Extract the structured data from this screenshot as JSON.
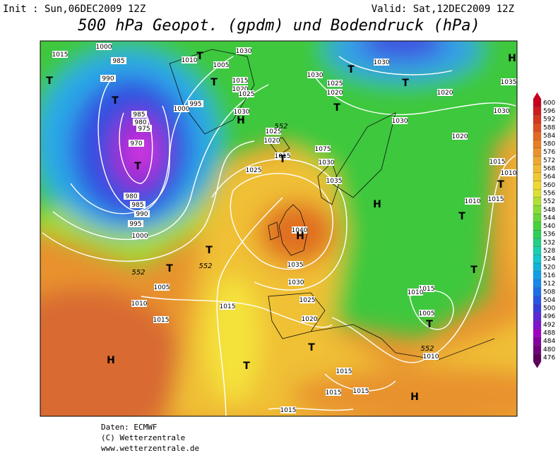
{
  "header": {
    "init": "Init : Sun,06DEC2009 12Z",
    "valid": "Valid: Sat,12DEC2009 12Z",
    "title": "500 hPa Geopot. (gpdm) und Bodendruck (hPa)"
  },
  "colorbar": {
    "ticks": [
      600,
      596,
      592,
      588,
      584,
      580,
      576,
      572,
      568,
      564,
      560,
      556,
      552,
      548,
      544,
      540,
      536,
      532,
      528,
      524,
      520,
      516,
      512,
      508,
      504,
      500,
      496,
      492,
      488,
      484,
      480,
      476
    ]
  },
  "map_labels": {
    "pressure": [
      "1015",
      "1000",
      "985",
      "990",
      "1010",
      "1005",
      "1030",
      "1015",
      "1020",
      "1025",
      "995",
      "1000",
      "985",
      "980",
      "975",
      "970",
      "1030",
      "1025",
      "1020",
      "1015",
      "1025",
      "1075",
      "1030",
      "1035",
      "980",
      "985",
      "990",
      "995",
      "1000",
      "1005",
      "1010",
      "1015",
      "1040",
      "1035",
      "1030",
      "1025",
      "1020",
      "1015",
      "1030",
      "1025",
      "1020",
      "1030",
      "1020",
      "1030",
      "1030",
      "1020",
      "1035",
      "1015",
      "1010",
      "1010",
      "1015",
      "1015",
      "1010",
      "1005",
      "1010",
      "1015",
      "1015",
      "1015",
      "1015"
    ],
    "geopotential": [
      "552",
      "552",
      "552",
      "552"
    ],
    "centers": [
      "T",
      "T",
      "T",
      "T",
      "H",
      "T",
      "T",
      "T",
      "T",
      "T",
      "H",
      "H",
      "T",
      "T",
      "T",
      "T",
      "H",
      "T",
      "T",
      "T",
      "T",
      "H",
      "H"
    ]
  },
  "footer": [
    "Daten: ECMWF",
    "(C) Wetterzentrale",
    "www.wetterzentrale.de"
  ]
}
